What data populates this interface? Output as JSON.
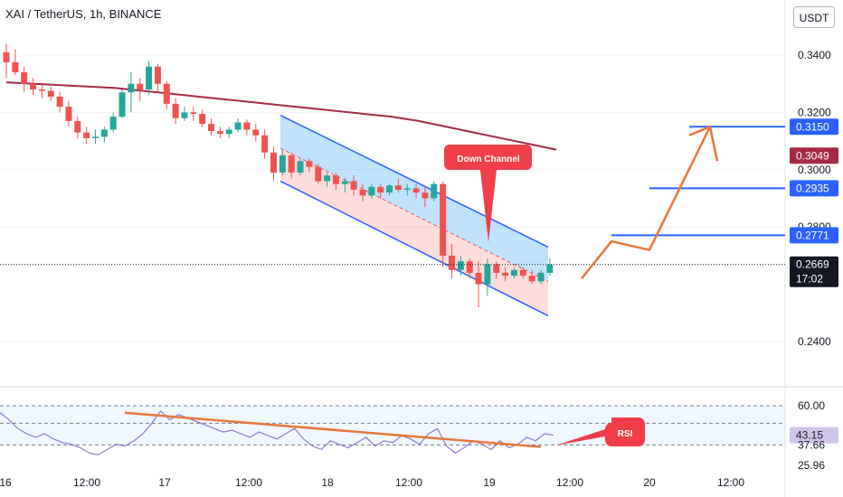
{
  "header": {
    "symbol_line": "XAI / TetherUS, 1h, BINANCE",
    "currency_button": "USDT"
  },
  "chart_data": [
    {
      "type": "candlestick",
      "title": "XAI / TetherUS, 1h, BINANCE",
      "ylim": [
        0.234,
        0.354
      ],
      "price_ticks": [
        "0.3400",
        "0.3200",
        "0.3000",
        "0.2800",
        "0.2400"
      ],
      "x_ticks": [
        "16",
        "12:00",
        "17",
        "12:00",
        "18",
        "12:00",
        "19",
        "12:00",
        "20",
        "12:00"
      ],
      "colors": {
        "up": "#26a69a",
        "down": "#ef5350",
        "ma": "#a52a45",
        "channel": "#2962ff",
        "arrow": "#e8743b"
      },
      "candles": [
        [
          0.341,
          0.344,
          0.332,
          0.3375
        ],
        [
          0.3375,
          0.342,
          0.333,
          0.334
        ],
        [
          0.334,
          0.336,
          0.327,
          0.33
        ],
        [
          0.33,
          0.332,
          0.326,
          0.328
        ],
        [
          0.328,
          0.3295,
          0.325,
          0.3275
        ],
        [
          0.3275,
          0.329,
          0.324,
          0.3255
        ],
        [
          0.3255,
          0.327,
          0.32,
          0.322
        ],
        [
          0.322,
          0.324,
          0.315,
          0.317
        ],
        [
          0.317,
          0.3185,
          0.311,
          0.313
        ],
        [
          0.313,
          0.315,
          0.309,
          0.311
        ],
        [
          0.311,
          0.314,
          0.309,
          0.3115
        ],
        [
          0.3115,
          0.315,
          0.3095,
          0.314
        ],
        [
          0.314,
          0.32,
          0.313,
          0.3185
        ],
        [
          0.3185,
          0.328,
          0.318,
          0.327
        ],
        [
          0.327,
          0.334,
          0.32,
          0.33
        ],
        [
          0.33,
          0.332,
          0.324,
          0.328
        ],
        [
          0.328,
          0.338,
          0.326,
          0.336
        ],
        [
          0.336,
          0.337,
          0.327,
          0.33
        ],
        [
          0.33,
          0.331,
          0.321,
          0.323
        ],
        [
          0.323,
          0.325,
          0.316,
          0.318
        ],
        [
          0.318,
          0.322,
          0.317,
          0.32
        ],
        [
          0.32,
          0.322,
          0.317,
          0.3195
        ],
        [
          0.3195,
          0.321,
          0.315,
          0.316
        ],
        [
          0.316,
          0.318,
          0.312,
          0.3135
        ],
        [
          0.3135,
          0.315,
          0.311,
          0.3125
        ],
        [
          0.3125,
          0.315,
          0.311,
          0.314
        ],
        [
          0.314,
          0.318,
          0.313,
          0.3165
        ],
        [
          0.3165,
          0.3175,
          0.312,
          0.314
        ],
        [
          0.314,
          0.316,
          0.31,
          0.312
        ],
        [
          0.312,
          0.314,
          0.304,
          0.306
        ],
        [
          0.306,
          0.308,
          0.296,
          0.299
        ],
        [
          0.299,
          0.307,
          0.298,
          0.305
        ],
        [
          0.305,
          0.306,
          0.297,
          0.299
        ],
        [
          0.299,
          0.304,
          0.298,
          0.303
        ],
        [
          0.303,
          0.304,
          0.299,
          0.301
        ],
        [
          0.301,
          0.302,
          0.295,
          0.296
        ],
        [
          0.296,
          0.299,
          0.294,
          0.298
        ],
        [
          0.298,
          0.299,
          0.293,
          0.295
        ],
        [
          0.295,
          0.297,
          0.292,
          0.296
        ],
        [
          0.296,
          0.298,
          0.291,
          0.293
        ],
        [
          0.293,
          0.295,
          0.289,
          0.291
        ],
        [
          0.291,
          0.295,
          0.29,
          0.294
        ],
        [
          0.294,
          0.295,
          0.29,
          0.292
        ],
        [
          0.292,
          0.295,
          0.291,
          0.2945
        ],
        [
          0.2945,
          0.297,
          0.292,
          0.293
        ],
        [
          0.293,
          0.295,
          0.291,
          0.2935
        ],
        [
          0.2935,
          0.295,
          0.29,
          0.292
        ],
        [
          0.292,
          0.294,
          0.287,
          0.29
        ],
        [
          0.29,
          0.296,
          0.289,
          0.295
        ],
        [
          0.295,
          0.296,
          0.266,
          0.27
        ],
        [
          0.27,
          0.274,
          0.262,
          0.265
        ],
        [
          0.265,
          0.27,
          0.263,
          0.268
        ],
        [
          0.268,
          0.269,
          0.262,
          0.264
        ],
        [
          0.264,
          0.268,
          0.252,
          0.26
        ],
        [
          0.26,
          0.269,
          0.256,
          0.267
        ],
        [
          0.267,
          0.268,
          0.262,
          0.264
        ],
        [
          0.264,
          0.266,
          0.261,
          0.263
        ],
        [
          0.263,
          0.266,
          0.262,
          0.265
        ],
        [
          0.265,
          0.266,
          0.262,
          0.263
        ],
        [
          0.263,
          0.265,
          0.26,
          0.261
        ],
        [
          0.261,
          0.265,
          0.26,
          0.264
        ],
        [
          0.264,
          0.269,
          0.263,
          0.2669
        ]
      ],
      "ma": [
        0.3305,
        0.33,
        0.3295,
        0.329,
        0.3285,
        0.3275,
        0.3265,
        0.3255,
        0.3245,
        0.3235,
        0.3225,
        0.3215,
        0.3205,
        0.3195,
        0.3185,
        0.317,
        0.315,
        0.313,
        0.311,
        0.309,
        0.307
      ],
      "channel": {
        "upper": [
          0.319,
          0.273
        ],
        "lower": [
          0.296,
          0.249
        ],
        "mid": [
          0.3075,
          0.261
        ]
      },
      "levels": [
        {
          "label": "0.3150",
          "value": 0.315,
          "color": "#2962ff"
        },
        {
          "label": "0.2935",
          "value": 0.2935,
          "color": "#2962ff"
        },
        {
          "label": "0.2771",
          "value": 0.2771,
          "color": "#2962ff"
        }
      ],
      "price_tags": [
        {
          "label": "0.3049",
          "value": 0.3049,
          "color": "#a52a45"
        },
        {
          "label": "0.2669",
          "value": 0.2669,
          "color": "#131722",
          "sub": "17:02"
        }
      ],
      "projection": [
        0.262,
        0.275,
        0.272,
        0.315,
        0.303
      ],
      "annotation": "Down Channel"
    },
    {
      "type": "line",
      "title": "RSI",
      "ylim": [
        25.96,
        65
      ],
      "ticks": [
        "60.00",
        "37.66",
        "25.96"
      ],
      "value_tag": "43.15",
      "callout": "RSI",
      "series": [
        {
          "values": [
            56,
            52,
            47,
            44,
            42,
            44,
            41,
            39,
            38,
            36,
            33,
            32,
            35,
            38,
            37,
            40,
            44,
            50,
            57,
            52,
            55,
            53,
            51,
            49,
            47,
            45,
            46,
            44,
            42,
            45,
            43,
            41,
            44,
            47,
            41,
            37,
            35,
            40,
            38,
            36,
            39,
            42,
            37,
            40,
            39,
            43,
            41,
            38,
            44,
            47,
            37,
            33,
            36,
            40,
            38,
            35,
            40,
            36,
            38,
            42,
            40,
            44,
            43.15
          ]
        }
      ]
    }
  ]
}
